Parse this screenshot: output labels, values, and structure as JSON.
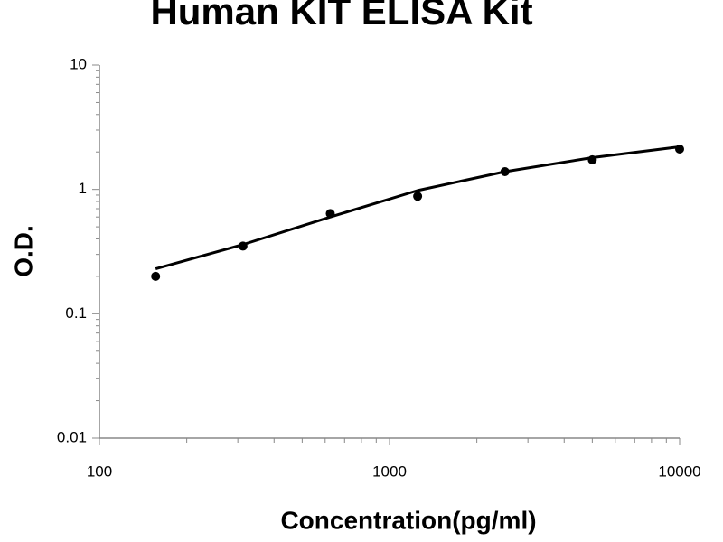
{
  "chart_data": {
    "type": "scatter",
    "title": "Human KIT ELISA Kit",
    "x_label": "Concentration(pg/ml)",
    "y_label": "O.D.",
    "x": [
      156.25,
      312.5,
      625,
      1250,
      2500,
      5000,
      10000
    ],
    "series": [
      {
        "values": [
          0.2,
          0.35,
          0.64,
          0.88,
          1.39,
          1.73,
          2.11
        ],
        "color": "#000000",
        "style": "markers"
      },
      {
        "values": [
          0.23,
          0.36,
          0.6,
          0.98,
          1.39,
          1.8,
          2.2
        ],
        "color": "#000000",
        "style": "line"
      }
    ],
    "xlim": [
      100,
      10000
    ],
    "ylim": [
      0.01,
      10
    ],
    "xticks": [
      100,
      1000,
      10000
    ],
    "yticks": [
      0.01,
      0.1,
      1,
      10
    ],
    "xscale": "log",
    "yscale": "log",
    "grid": false
  }
}
